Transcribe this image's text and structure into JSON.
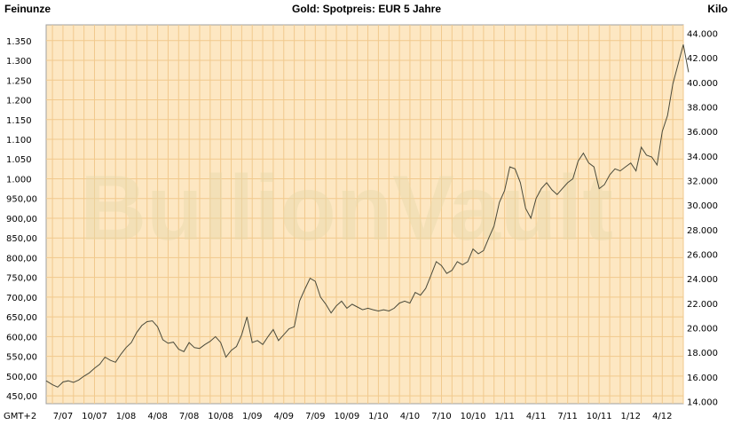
{
  "header": {
    "left_unit": "Feinunze",
    "title": "Gold: Spotpreis: EUR 5 Jahre",
    "right_unit": "Kilo"
  },
  "timezone_label": "GMT+2",
  "watermark": "BullionVault",
  "colors": {
    "plot_bg": "#fde7c2",
    "grid": "#f1c98d",
    "line": "#4a4a3a",
    "watermark": "#e8d9ab"
  },
  "chart_data": {
    "type": "line",
    "title": "Gold: Spotpreis: EUR 5 Jahre",
    "xlabel": "",
    "ylabel_left": "Feinunze",
    "ylabel_right": "Kilo",
    "ylim_left": [
      430,
      1390
    ],
    "ylim_right": [
      13.82,
      44.69
    ],
    "yticks_left": [
      "450,00",
      "500,00",
      "550,00",
      "600,00",
      "650,00",
      "700,00",
      "750,00",
      "800,00",
      "850,00",
      "900,00",
      "950,00",
      "1.000",
      "1.050",
      "1.100",
      "1.150",
      "1.200",
      "1.250",
      "1.300",
      "1.350"
    ],
    "yticks_left_values": [
      450,
      500,
      550,
      600,
      650,
      700,
      750,
      800,
      850,
      900,
      950,
      1000,
      1050,
      1100,
      1150,
      1200,
      1250,
      1300,
      1350
    ],
    "yticks_right": [
      "14.000",
      "16.000",
      "18.000",
      "20.000",
      "22.000",
      "24.000",
      "26.000",
      "28.000",
      "30.000",
      "32.000",
      "34.000",
      "36.000",
      "38.000",
      "40.000",
      "42.000",
      "44.000"
    ],
    "yticks_right_values": [
      14,
      16,
      18,
      20,
      22,
      24,
      26,
      28,
      30,
      32,
      34,
      36,
      38,
      40,
      42,
      44
    ],
    "xticks": [
      "7/07",
      "10/07",
      "1/08",
      "4/08",
      "7/08",
      "10/08",
      "1/09",
      "4/09",
      "7/09",
      "10/09",
      "1/10",
      "4/10",
      "7/10",
      "10/10",
      "1/11",
      "4/11",
      "7/11",
      "10/11",
      "1/12",
      "4/12"
    ],
    "xticks_months": [
      6,
      9,
      12,
      15,
      18,
      21,
      24,
      27,
      30,
      33,
      36,
      39,
      42,
      45,
      48,
      51,
      54,
      57,
      60,
      63
    ],
    "xlim_months": [
      4.4,
      65.0
    ],
    "grid": true,
    "series": [
      {
        "unit": "EUR per troy ounce",
        "points": [
          [
            4.4,
            488
          ],
          [
            5,
            478
          ],
          [
            5.5,
            472
          ],
          [
            6,
            485
          ],
          [
            6.5,
            488
          ],
          [
            7,
            484
          ],
          [
            7.5,
            490
          ],
          [
            8,
            500
          ],
          [
            8.5,
            508
          ],
          [
            9,
            520
          ],
          [
            9.5,
            530
          ],
          [
            10,
            548
          ],
          [
            10.5,
            540
          ],
          [
            11,
            535
          ],
          [
            11.5,
            555
          ],
          [
            12,
            572
          ],
          [
            12.5,
            585
          ],
          [
            13,
            610
          ],
          [
            13.5,
            628
          ],
          [
            14,
            638
          ],
          [
            14.5,
            640
          ],
          [
            15,
            625
          ],
          [
            15.5,
            592
          ],
          [
            16,
            583
          ],
          [
            16.5,
            586
          ],
          [
            17,
            568
          ],
          [
            17.5,
            562
          ],
          [
            18,
            585
          ],
          [
            18.5,
            572
          ],
          [
            19,
            570
          ],
          [
            19.5,
            580
          ],
          [
            20,
            588
          ],
          [
            20.5,
            600
          ],
          [
            21,
            585
          ],
          [
            21.5,
            548
          ],
          [
            22,
            565
          ],
          [
            22.5,
            575
          ],
          [
            23,
            605
          ],
          [
            23.5,
            650
          ],
          [
            24,
            585
          ],
          [
            24.5,
            590
          ],
          [
            25,
            580
          ],
          [
            25.5,
            600
          ],
          [
            26,
            618
          ],
          [
            26.5,
            590
          ],
          [
            27,
            605
          ],
          [
            27.5,
            620
          ],
          [
            28,
            625
          ],
          [
            28.5,
            690
          ],
          [
            29,
            720
          ],
          [
            29.5,
            748
          ],
          [
            30,
            740
          ],
          [
            30.5,
            700
          ],
          [
            31,
            682
          ],
          [
            31.5,
            660
          ],
          [
            32,
            678
          ],
          [
            32.5,
            690
          ],
          [
            33,
            672
          ],
          [
            33.5,
            682
          ],
          [
            34,
            675
          ],
          [
            34.5,
            668
          ],
          [
            35,
            672
          ],
          [
            35.5,
            668
          ],
          [
            36,
            665
          ],
          [
            36.5,
            668
          ],
          [
            37,
            665
          ],
          [
            37.5,
            672
          ],
          [
            38,
            685
          ],
          [
            38.5,
            690
          ],
          [
            39,
            685
          ],
          [
            39.5,
            712
          ],
          [
            40,
            705
          ],
          [
            40.5,
            722
          ],
          [
            41,
            755
          ],
          [
            41.5,
            790
          ],
          [
            42,
            780
          ],
          [
            42.5,
            760
          ],
          [
            43,
            768
          ],
          [
            43.5,
            790
          ],
          [
            44,
            782
          ],
          [
            44.5,
            790
          ],
          [
            45,
            822
          ],
          [
            45.5,
            810
          ],
          [
            46,
            818
          ],
          [
            46.5,
            850
          ],
          [
            47,
            880
          ],
          [
            47.5,
            940
          ],
          [
            48,
            970
          ],
          [
            48.5,
            1030
          ],
          [
            49,
            1025
          ],
          [
            49.5,
            990
          ],
          [
            50,
            925
          ],
          [
            50.5,
            900
          ],
          [
            51,
            950
          ],
          [
            51.5,
            975
          ],
          [
            52,
            990
          ],
          [
            52.5,
            972
          ],
          [
            53,
            960
          ],
          [
            53.5,
            975
          ],
          [
            54,
            990
          ],
          [
            54.5,
            1000
          ],
          [
            55,
            1045
          ],
          [
            55.5,
            1065
          ],
          [
            56,
            1040
          ],
          [
            56.5,
            1030
          ],
          [
            57,
            975
          ],
          [
            57.5,
            985
          ],
          [
            58,
            1010
          ],
          [
            58.5,
            1025
          ],
          [
            59,
            1020
          ],
          [
            59.5,
            1030
          ],
          [
            60,
            1040
          ],
          [
            60.5,
            1020
          ],
          [
            61,
            1080
          ],
          [
            61.5,
            1060
          ],
          [
            62,
            1055
          ],
          [
            62.5,
            1035
          ],
          [
            63,
            1120
          ],
          [
            63.5,
            1160
          ],
          [
            64,
            1240
          ],
          [
            64.5,
            1290
          ],
          [
            65,
            1340
          ],
          [
            65.5,
            1270
          ]
        ]
      }
    ]
  }
}
